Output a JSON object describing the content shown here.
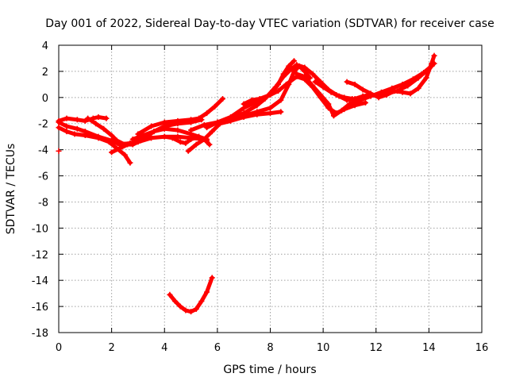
{
  "chart_data": {
    "type": "scatter",
    "title": "Day 001 of 2022, Sidereal Day-to-day VTEC variation (SDTVAR) for receiver case",
    "xlabel": "GPS time / hours",
    "ylabel": "SDTVAR / TECUs",
    "xlim": [
      0,
      16
    ],
    "ylim": [
      -18,
      4
    ],
    "xticks": [
      "0",
      "2",
      "4",
      "6",
      "8",
      "10",
      "12",
      "14",
      "16"
    ],
    "yticks": [
      "4",
      "2",
      "0",
      "-2",
      "-4",
      "-6",
      "-8",
      "-10",
      "-12",
      "-14",
      "-16",
      "-18"
    ],
    "grid": true,
    "marker_color": "#ff0000",
    "series": [
      {
        "points": [
          [
            0.0,
            -1.9
          ],
          [
            0.3,
            -2.2
          ],
          [
            0.7,
            -2.4
          ],
          [
            1.0,
            -2.6
          ],
          [
            1.5,
            -3.0
          ],
          [
            2.0,
            -3.3
          ],
          [
            2.3,
            -3.6
          ],
          [
            2.7,
            -3.5
          ],
          [
            3.2,
            -3.2
          ],
          [
            3.6,
            -2.6
          ],
          [
            4.0,
            -2.2
          ],
          [
            4.5,
            -2.0
          ],
          [
            5.0,
            -1.9
          ],
          [
            5.4,
            -1.7
          ]
        ]
      },
      {
        "points": [
          [
            0.0,
            -2.3
          ],
          [
            0.3,
            -2.6
          ],
          [
            0.6,
            -2.8
          ],
          [
            1.0,
            -2.9
          ],
          [
            1.5,
            -3.1
          ],
          [
            1.9,
            -3.4
          ],
          [
            2.2,
            -3.9
          ],
          [
            2.5,
            -4.4
          ],
          [
            2.7,
            -5.0
          ]
        ]
      },
      {
        "points": [
          [
            0.0,
            -1.8
          ],
          [
            0.3,
            -1.6
          ],
          [
            0.7,
            -1.7
          ],
          [
            1.0,
            -1.8
          ],
          [
            1.3,
            -1.6
          ],
          [
            1.5,
            -1.5
          ],
          [
            1.8,
            -1.6
          ]
        ]
      },
      {
        "points": [
          [
            1.1,
            -1.6
          ],
          [
            1.4,
            -2.0
          ],
          [
            1.7,
            -2.4
          ],
          [
            2.0,
            -2.9
          ],
          [
            2.2,
            -3.3
          ],
          [
            2.5,
            -3.6
          ],
          [
            2.8,
            -3.6
          ],
          [
            3.1,
            -3.3
          ]
        ]
      },
      {
        "points": [
          [
            2.0,
            -4.2
          ],
          [
            2.3,
            -3.9
          ],
          [
            2.6,
            -3.6
          ],
          [
            3.0,
            -3.4
          ],
          [
            3.5,
            -3.1
          ],
          [
            4.0,
            -3.0
          ],
          [
            4.5,
            -3.0
          ],
          [
            5.0,
            -3.1
          ],
          [
            5.5,
            -3.2
          ],
          [
            5.7,
            -3.6
          ]
        ]
      },
      {
        "points": [
          [
            2.8,
            -3.2
          ],
          [
            3.2,
            -2.9
          ],
          [
            3.6,
            -2.6
          ],
          [
            4.0,
            -2.4
          ],
          [
            4.5,
            -2.5
          ],
          [
            5.0,
            -2.8
          ],
          [
            5.3,
            -3.0
          ],
          [
            5.6,
            -3.2
          ]
        ]
      },
      {
        "points": [
          [
            3.0,
            -2.8
          ],
          [
            3.5,
            -2.2
          ],
          [
            4.0,
            -1.9
          ],
          [
            4.5,
            -1.8
          ],
          [
            5.0,
            -1.7
          ],
          [
            5.3,
            -1.6
          ],
          [
            5.6,
            -1.2
          ],
          [
            5.9,
            -0.7
          ],
          [
            6.2,
            -0.1
          ]
        ]
      },
      {
        "points": [
          [
            4.0,
            -3.0
          ],
          [
            4.3,
            -3.1
          ],
          [
            4.6,
            -3.4
          ],
          [
            4.8,
            -3.5
          ],
          [
            5.0,
            -3.2
          ],
          [
            5.3,
            -3.0
          ],
          [
            5.6,
            -3.3
          ]
        ]
      },
      {
        "points": [
          [
            4.9,
            -4.1
          ],
          [
            5.2,
            -3.6
          ],
          [
            5.5,
            -3.2
          ],
          [
            5.8,
            -2.6
          ],
          [
            6.1,
            -2.0
          ],
          [
            6.5,
            -1.8
          ],
          [
            7.0,
            -1.5
          ],
          [
            7.5,
            -1.3
          ],
          [
            8.0,
            -1.2
          ],
          [
            8.4,
            -1.1
          ]
        ]
      },
      {
        "points": [
          [
            5.0,
            -2.5
          ],
          [
            5.5,
            -2.1
          ],
          [
            6.0,
            -1.9
          ],
          [
            6.5,
            -1.7
          ],
          [
            7.0,
            -1.4
          ],
          [
            7.5,
            -1.1
          ],
          [
            8.0,
            -0.8
          ],
          [
            8.4,
            -0.2
          ],
          [
            8.7,
            1.0
          ],
          [
            8.9,
            2.0
          ],
          [
            9.1,
            2.4
          ],
          [
            9.3,
            2.0
          ],
          [
            9.5,
            1.5
          ]
        ]
      },
      {
        "points": [
          [
            5.6,
            -2.3
          ],
          [
            6.0,
            -1.9
          ],
          [
            6.5,
            -1.5
          ],
          [
            7.0,
            -0.8
          ],
          [
            7.5,
            -0.3
          ],
          [
            8.0,
            0.2
          ],
          [
            8.3,
            1.0
          ],
          [
            8.5,
            1.8
          ],
          [
            8.7,
            2.4
          ],
          [
            8.9,
            2.8
          ]
        ]
      },
      {
        "points": [
          [
            6.5,
            -1.6
          ],
          [
            7.0,
            -1.2
          ],
          [
            7.5,
            -0.6
          ],
          [
            7.8,
            -0.1
          ],
          [
            8.2,
            0.8
          ],
          [
            8.5,
            1.6
          ],
          [
            8.8,
            2.2
          ],
          [
            9.0,
            2.5
          ],
          [
            9.3,
            2.3
          ],
          [
            9.6,
            1.8
          ],
          [
            9.9,
            1.2
          ],
          [
            10.2,
            0.6
          ],
          [
            10.5,
            0.2
          ],
          [
            10.8,
            0.0
          ],
          [
            11.1,
            -0.1
          ]
        ]
      },
      {
        "points": [
          [
            7.0,
            -0.5
          ],
          [
            7.3,
            -0.2
          ],
          [
            7.6,
            -0.1
          ],
          [
            8.0,
            0.2
          ],
          [
            8.3,
            0.5
          ],
          [
            8.6,
            1.0
          ],
          [
            9.0,
            1.6
          ],
          [
            9.3,
            1.4
          ],
          [
            9.6,
            0.8
          ],
          [
            9.9,
            0.0
          ],
          [
            10.2,
            -0.8
          ],
          [
            10.5,
            -1.2
          ],
          [
            10.8,
            -0.9
          ],
          [
            11.2,
            -0.6
          ],
          [
            11.6,
            -0.4
          ]
        ]
      },
      {
        "points": [
          [
            9.0,
            1.8
          ],
          [
            9.3,
            1.6
          ],
          [
            9.6,
            0.9
          ],
          [
            9.9,
            0.2
          ],
          [
            10.2,
            -0.5
          ],
          [
            10.4,
            -1.4
          ],
          [
            10.7,
            -1.0
          ],
          [
            11.0,
            -0.5
          ],
          [
            11.4,
            -0.2
          ],
          [
            11.8,
            0.1
          ],
          [
            12.2,
            0.4
          ],
          [
            12.6,
            0.7
          ],
          [
            13.0,
            1.0
          ],
          [
            13.4,
            1.4
          ],
          [
            13.8,
            1.9
          ],
          [
            14.1,
            2.4
          ]
        ]
      },
      {
        "points": [
          [
            9.7,
            1.2
          ],
          [
            10.0,
            0.8
          ],
          [
            10.3,
            0.4
          ],
          [
            10.6,
            0.1
          ],
          [
            10.9,
            -0.2
          ],
          [
            11.2,
            -0.1
          ],
          [
            11.5,
            0.1
          ],
          [
            11.8,
            0.2
          ],
          [
            12.1,
            0.2
          ],
          [
            12.4,
            0.3
          ],
          [
            12.8,
            0.5
          ],
          [
            13.2,
            0.9
          ],
          [
            13.6,
            1.5
          ],
          [
            14.0,
            2.2
          ],
          [
            14.2,
            2.6
          ]
        ]
      },
      {
        "points": [
          [
            10.9,
            1.2
          ],
          [
            11.2,
            1.0
          ],
          [
            11.5,
            0.6
          ],
          [
            11.8,
            0.3
          ],
          [
            12.1,
            0.0
          ],
          [
            12.4,
            0.2
          ],
          [
            12.7,
            0.5
          ],
          [
            13.0,
            0.4
          ],
          [
            13.3,
            0.3
          ],
          [
            13.6,
            0.7
          ],
          [
            13.9,
            1.5
          ],
          [
            14.1,
            2.6
          ],
          [
            14.2,
            3.2
          ]
        ]
      },
      {
        "points": [
          [
            4.2,
            -15.1
          ],
          [
            4.4,
            -15.6
          ],
          [
            4.6,
            -16.0
          ],
          [
            4.8,
            -16.3
          ],
          [
            5.0,
            -16.4
          ],
          [
            5.2,
            -16.2
          ],
          [
            5.4,
            -15.6
          ],
          [
            5.6,
            -14.9
          ],
          [
            5.8,
            -13.8
          ]
        ]
      },
      {
        "points": [
          [
            0.0,
            -4.1
          ]
        ]
      }
    ]
  }
}
